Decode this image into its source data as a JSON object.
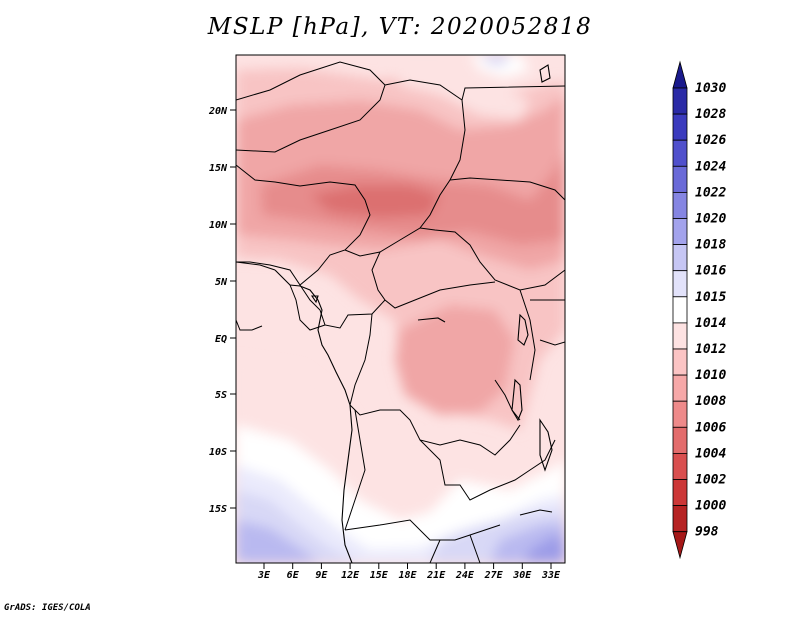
{
  "title": "MSLP [hPa], VT: 2020052818",
  "footer": "GrADS: IGES/COLA",
  "lat_ticks": [
    "20N",
    "15N",
    "10N",
    "5N",
    "EQ",
    "5S",
    "10S",
    "15S"
  ],
  "lon_ticks": [
    "3E",
    "6E",
    "9E",
    "12E",
    "15E",
    "18E",
    "21E",
    "24E",
    "27E",
    "30E",
    "33E"
  ],
  "colorbar": {
    "labels": [
      "1030",
      "1028",
      "1026",
      "1024",
      "1022",
      "1020",
      "1018",
      "1016",
      "1015",
      "1014",
      "1012",
      "1010",
      "1008",
      "1006",
      "1004",
      "1002",
      "1000",
      "998"
    ],
    "colors": [
      "#1a1a8c",
      "#2a2aa6",
      "#3b3bbe",
      "#5050cc",
      "#6a6ad8",
      "#8585e2",
      "#a3a3ec",
      "#c6c6f4",
      "#e2e2fa",
      "#ffffff",
      "#fde2e2",
      "#fbc4c4",
      "#f6a8a8",
      "#ee8a8a",
      "#e36c6c",
      "#d94f4f",
      "#cc3737",
      "#b62323",
      "#a51818"
    ]
  },
  "colors": {
    "p1016": "#d8d8f6",
    "p1015": "#eaeafc",
    "p1014": "#ffffff",
    "p1012": "#fde3e3",
    "p1010": "#f8c4c4",
    "p1008": "#f0a6a6",
    "p1006": "#e68c8c",
    "p1004": "#dc7070",
    "p1018": "#b9b9f0",
    "p1020": "#9c9ce8"
  }
}
